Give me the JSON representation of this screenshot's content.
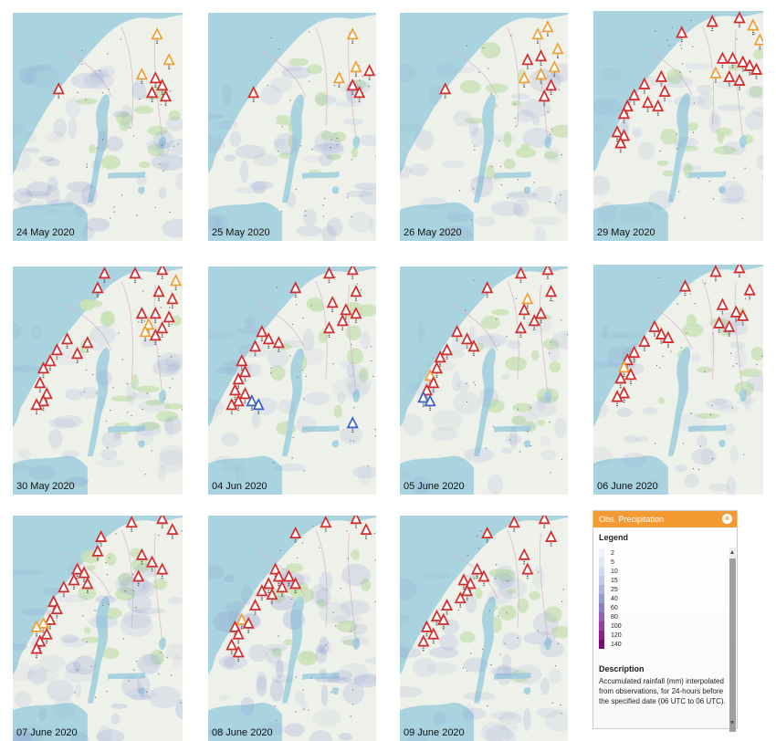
{
  "maps": [
    {
      "date": "24 May 2020"
    },
    {
      "date": "25 May 2020"
    },
    {
      "date": "26 May 2020"
    },
    {
      "date": "29 May 2020"
    },
    {
      "date": "30 May 2020"
    },
    {
      "date": "04 Jun 2020"
    },
    {
      "date": "05 June 2020"
    },
    {
      "date": "06 June 2020"
    },
    {
      "date": "07 June 2020"
    },
    {
      "date": "08 June 2020"
    },
    {
      "date": "09 June 2020"
    }
  ],
  "legend": {
    "header": "Obs. Precipitation",
    "close_icon": "close-icon",
    "title": "Legend",
    "scale": [
      {
        "value": "2",
        "color": "#eef1f8"
      },
      {
        "value": "5",
        "color": "#e2e8f4"
      },
      {
        "value": "10",
        "color": "#d1dbee"
      },
      {
        "value": "15",
        "color": "#bfcbe8"
      },
      {
        "value": "25",
        "color": "#a9b6de"
      },
      {
        "value": "40",
        "color": "#959fd3"
      },
      {
        "value": "60",
        "color": "#8d80c5"
      },
      {
        "value": "80",
        "color": "#955db3"
      },
      {
        "value": "100",
        "color": "#9a3ea1"
      },
      {
        "value": "120",
        "color": "#8f1f8e"
      },
      {
        "value": "140",
        "color": "#7a0a78"
      }
    ],
    "description_title": "Description",
    "description": "Accumulated rainfall (mm) interpolated from observations, for 24-hours before the specified date (06 UTC to 06 UTC)."
  },
  "colors": {
    "sea": "#a9d3de",
    "land": "#eef0ea",
    "forest": "#c8e2b4",
    "alert_red": "#d42b2b",
    "alert_orange": "#f0a030",
    "alert_blue": "#3a5fc8",
    "rain": "#8a9bd2"
  }
}
